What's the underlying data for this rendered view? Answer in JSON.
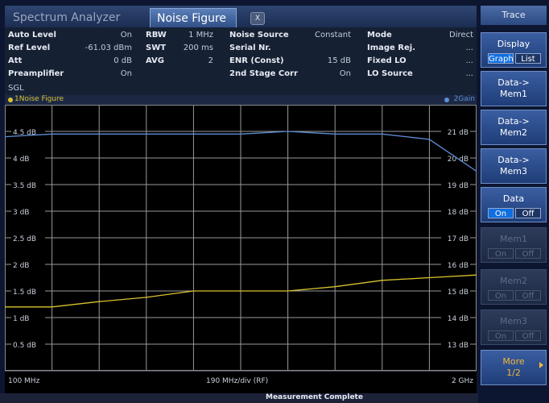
{
  "tabs": [
    {
      "label": "Spectrum Analyzer",
      "active": false
    },
    {
      "label": "Noise Figure",
      "active": true
    }
  ],
  "tab_close_label": "X",
  "info": {
    "col1": [
      {
        "label": "Auto Level",
        "value": "On"
      },
      {
        "label": "Ref Level",
        "value": "-61.03 dBm"
      },
      {
        "label": "Att",
        "value": "0 dB"
      },
      {
        "label": "Preamplifier",
        "value": "On"
      }
    ],
    "col2": [
      {
        "label": "RBW",
        "value": "1 MHz"
      },
      {
        "label": "SWT",
        "value": "200 ms"
      },
      {
        "label": "AVG",
        "value": "2"
      }
    ],
    "col3": [
      {
        "label": "Noise Source",
        "value": "Constant"
      },
      {
        "label": "Serial Nr.",
        "value": ""
      },
      {
        "label": "ENR (Const)",
        "value": "15 dB"
      },
      {
        "label": "2nd Stage Corr",
        "value": "On"
      }
    ],
    "col4": [
      {
        "label": "Mode",
        "value": "Direct"
      },
      {
        "label": "Image Rej.",
        "value": "..."
      },
      {
        "label": "Fixed LO",
        "value": "..."
      },
      {
        "label": "LO Source",
        "value": "..."
      }
    ],
    "sgl": "SGL"
  },
  "trace1_name": "1Noise Figure",
  "trace2_name": "2Gain",
  "trace1_color": "#d8c230",
  "trace2_color": "#5d8fd6",
  "y_left_labels": [
    "4.5 dB",
    "4 dB",
    "3.5 dB",
    "3 dB",
    "2.5 dB",
    "2 dB",
    "1.5 dB",
    "1 dB",
    "0.5 dB"
  ],
  "y_right_labels": [
    "21 dB",
    "20 dB",
    "19 dB",
    "18 dB",
    "17 dB",
    "16 dB",
    "15 dB",
    "14 dB",
    "13 dB"
  ],
  "footer": {
    "start": "100 MHz",
    "center": "190 MHz/div (RF)",
    "stop": "2 GHz"
  },
  "status_text": "Measurement Complete",
  "sidebar": {
    "title": "Trace",
    "display": {
      "label": "Display",
      "opt1": "Graph",
      "opt2": "List"
    },
    "data_mem1": {
      "l1": "Data->",
      "l2": "Mem1"
    },
    "data_mem2": {
      "l1": "Data->",
      "l2": "Mem2"
    },
    "data_mem3": {
      "l1": "Data->",
      "l2": "Mem3"
    },
    "data": {
      "label": "Data",
      "on": "On",
      "off": "Off"
    },
    "mem1": {
      "label": "Mem1",
      "on": "On",
      "off": "Off"
    },
    "mem2": {
      "label": "Mem2",
      "on": "On",
      "off": "Off"
    },
    "mem3": {
      "label": "Mem3",
      "on": "On",
      "off": "Off"
    },
    "more": {
      "l1": "More",
      "l2": "1/2"
    }
  },
  "chart_data": {
    "type": "line",
    "x": [
      100,
      290,
      480,
      670,
      860,
      1050,
      1240,
      1430,
      1620,
      1810,
      2000
    ],
    "xlim": [
      100,
      2000
    ],
    "series": [
      {
        "name": "1Noise Figure",
        "axis": "left",
        "values": [
          1.2,
          1.2,
          1.3,
          1.38,
          1.5,
          1.5,
          1.5,
          1.58,
          1.7,
          1.75,
          1.8
        ]
      },
      {
        "name": "2Gain",
        "axis": "right",
        "values": [
          21.3,
          21.4,
          21.4,
          21.4,
          21.4,
          21.4,
          21.5,
          21.4,
          21.4,
          21.2,
          20.0
        ]
      }
    ],
    "ylim_left": [
      0,
      5
    ],
    "ylim_right": [
      12.5,
      22.5
    ],
    "grid": true
  }
}
